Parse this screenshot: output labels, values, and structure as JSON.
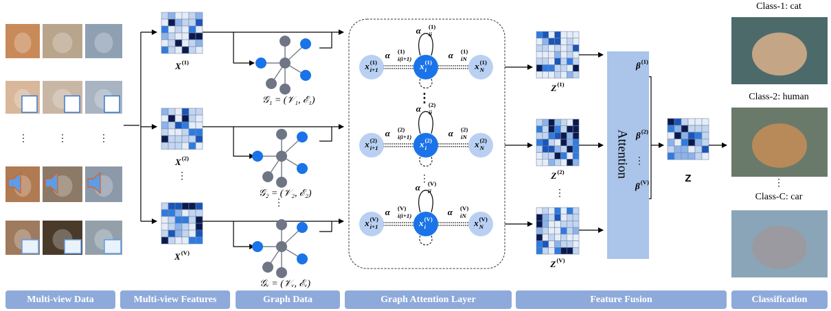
{
  "stages": [
    "Multi-view Data",
    "Multi-view Features",
    "Graph Data",
    "Graph Attention Layer",
    "Feature Fusion",
    "Classification"
  ],
  "features": [
    {
      "base": "X",
      "sup": "(1)"
    },
    {
      "base": "X",
      "sup": "(2)"
    },
    {
      "base": "X",
      "sup": "(V)"
    }
  ],
  "graphs": [
    "𝒢₁ = (𝒱₁, ℰ₁)",
    "𝒢₂ = (𝒱₂, ℰ₂)",
    "𝒢ᵥ = (𝒱ᵥ, ℰᵥ)"
  ],
  "attention_rows": [
    {
      "neighbor": {
        "base": "x",
        "sub": "i+1",
        "sup": "(1)"
      },
      "center": {
        "base": "x",
        "sub": "i",
        "sup": "(1)"
      },
      "last": {
        "base": "x",
        "sub": "N",
        "sup": "(1)"
      },
      "self_coef": {
        "base": "α⃗",
        "sub": "ii",
        "sup": "(1)"
      },
      "neighbor_coef": {
        "base": "α⃗",
        "sub": "i(i+1)",
        "sup": "(1)"
      },
      "last_coef": {
        "base": "α⃗",
        "sub": "iN",
        "sup": "(1)"
      }
    },
    {
      "neighbor": {
        "base": "x",
        "sub": "i+1",
        "sup": "(2)"
      },
      "center": {
        "base": "x",
        "sub": "i",
        "sup": "(2)"
      },
      "last": {
        "base": "x",
        "sub": "N",
        "sup": "(2)"
      },
      "self_coef": {
        "base": "α⃗",
        "sub": "ii",
        "sup": "(2)"
      },
      "neighbor_coef": {
        "base": "α⃗",
        "sub": "i(i+1)",
        "sup": "(2)"
      },
      "last_coef": {
        "base": "α⃗",
        "sub": "iN",
        "sup": "(2)"
      }
    },
    {
      "neighbor": {
        "base": "x",
        "sub": "i+1",
        "sup": "(V)"
      },
      "center": {
        "base": "x",
        "sub": "i",
        "sup": "(V)"
      },
      "last": {
        "base": "x",
        "sub": "N",
        "sup": "(V)"
      },
      "self_coef": {
        "base": "α⃗",
        "sub": "ii",
        "sup": "(V)"
      },
      "neighbor_coef": {
        "base": "α⃗",
        "sub": "i(i+1)",
        "sup": "(V)"
      },
      "last_coef": {
        "base": "α⃗",
        "sub": "iN",
        "sup": "(V)"
      }
    }
  ],
  "fused": [
    {
      "base": "Z",
      "sup": "(1)"
    },
    {
      "base": "Z",
      "sup": "(2)"
    },
    {
      "base": "Z",
      "sup": "(V)"
    }
  ],
  "attention": "Attention",
  "weights": [
    {
      "base": "β",
      "sup": "(1)"
    },
    {
      "base": "β",
      "sup": "(2)"
    },
    {
      "base": "β",
      "sup": "(V)"
    }
  ],
  "output": "Z",
  "classes": [
    "Class-1: cat",
    "Class-2: human",
    "Class-C: car"
  ],
  "ellipsis": "⋮"
}
